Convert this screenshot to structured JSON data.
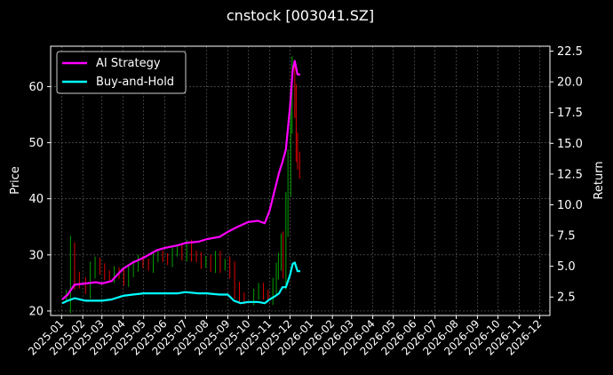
{
  "chart_data": {
    "type": "line",
    "title": "cnstock [003041.SZ]",
    "ylabel": "Price",
    "ylabel_right": "Return",
    "x_ticks": [
      "2025-01",
      "2025-02",
      "2025-03",
      "2025-04",
      "2025-05",
      "2025-06",
      "2025-07",
      "2025-08",
      "2025-09",
      "2025-10",
      "2025-11",
      "2025-12",
      "2026-01",
      "2026-02",
      "2026-03",
      "2026-04",
      "2026-05",
      "2026-06",
      "2026-07",
      "2026-08",
      "2026-09",
      "2026-10",
      "2026-11",
      "2026-12"
    ],
    "y_ticks": [
      20,
      30,
      40,
      50,
      60
    ],
    "y_ticks_right": [
      2.5,
      5.0,
      7.5,
      10.0,
      12.5,
      15.0,
      17.5,
      20.0,
      22.5
    ],
    "y_ticks_right_labels": [
      "2.5",
      "5.0",
      "7.5",
      "10.0",
      "12.5",
      "15.0",
      "17.5",
      "20.0",
      "22.5"
    ],
    "xlim": [
      "2024-12-16",
      "2026-12-16"
    ],
    "ylim": [
      19.2,
      67.2
    ],
    "ylim_right": [
      1.0,
      22.9
    ],
    "grid": true,
    "legend_position": "top-left",
    "background": "#000000",
    "colors": {
      "ai": "#ff00ff",
      "bh": "#00ffff",
      "up": "#00a000",
      "down": "#e00000"
    },
    "series": [
      {
        "name": "AI Strategy",
        "axis": "right",
        "x": [
          "2025-01-02",
          "2025-01-10",
          "2025-01-20",
          "2025-02-05",
          "2025-02-20",
          "2025-03-01",
          "2025-03-15",
          "2025-04-01",
          "2025-04-15",
          "2025-05-01",
          "2025-05-20",
          "2025-06-01",
          "2025-06-20",
          "2025-07-01",
          "2025-07-20",
          "2025-08-01",
          "2025-08-20",
          "2025-09-01",
          "2025-09-15",
          "2025-10-01",
          "2025-10-15",
          "2025-10-25",
          "2025-11-01",
          "2025-11-10",
          "2025-11-15",
          "2025-11-20",
          "2025-11-25",
          "2025-12-01",
          "2025-12-05",
          "2025-12-08",
          "2025-12-12",
          "2025-12-16"
        ],
        "values": [
          2.3,
          2.7,
          3.5,
          3.6,
          3.7,
          3.6,
          3.8,
          4.8,
          5.3,
          5.7,
          6.3,
          6.5,
          6.7,
          6.9,
          7.0,
          7.2,
          7.4,
          7.8,
          8.2,
          8.6,
          8.7,
          8.5,
          9.5,
          11.5,
          12.6,
          13.5,
          14.5,
          18.0,
          21.0,
          21.7,
          20.6,
          20.6
        ]
      },
      {
        "name": "Buy-and-Hold",
        "axis": "right",
        "x": [
          "2025-01-02",
          "2025-01-10",
          "2025-01-20",
          "2025-02-05",
          "2025-02-20",
          "2025-03-01",
          "2025-03-15",
          "2025-04-01",
          "2025-04-15",
          "2025-05-01",
          "2025-05-20",
          "2025-06-01",
          "2025-06-20",
          "2025-07-01",
          "2025-07-20",
          "2025-08-01",
          "2025-08-20",
          "2025-09-01",
          "2025-09-10",
          "2025-09-20",
          "2025-10-01",
          "2025-10-15",
          "2025-10-25",
          "2025-11-01",
          "2025-11-10",
          "2025-11-15",
          "2025-11-20",
          "2025-11-25",
          "2025-12-01",
          "2025-12-05",
          "2025-12-08",
          "2025-12-12",
          "2025-12-16"
        ],
        "values": [
          2.0,
          2.2,
          2.4,
          2.2,
          2.2,
          2.2,
          2.3,
          2.6,
          2.7,
          2.8,
          2.8,
          2.8,
          2.8,
          2.9,
          2.8,
          2.8,
          2.7,
          2.7,
          2.2,
          2.0,
          2.1,
          2.1,
          2.0,
          2.3,
          2.6,
          2.8,
          3.3,
          3.3,
          4.3,
          5.2,
          5.3,
          4.6,
          4.6
        ]
      },
      {
        "name": "Price",
        "axis": "left",
        "style": "candle",
        "x": [
          "2025-01-02",
          "2025-01-08",
          "2025-01-14",
          "2025-01-20",
          "2025-01-27",
          "2025-02-05",
          "2025-02-12",
          "2025-02-19",
          "2025-02-26",
          "2025-03-05",
          "2025-03-12",
          "2025-03-19",
          "2025-03-26",
          "2025-04-02",
          "2025-04-09",
          "2025-04-16",
          "2025-04-23",
          "2025-04-30",
          "2025-05-08",
          "2025-05-15",
          "2025-05-22",
          "2025-05-29",
          "2025-06-05",
          "2025-06-12",
          "2025-06-19",
          "2025-06-26",
          "2025-07-03",
          "2025-07-10",
          "2025-07-17",
          "2025-07-24",
          "2025-07-31",
          "2025-08-07",
          "2025-08-14",
          "2025-08-21",
          "2025-08-28",
          "2025-09-04",
          "2025-09-11",
          "2025-09-18",
          "2025-09-25",
          "2025-10-09",
          "2025-10-16",
          "2025-10-23",
          "2025-10-30",
          "2025-11-06",
          "2025-11-11",
          "2025-11-14",
          "2025-11-18",
          "2025-11-21",
          "2025-11-25",
          "2025-11-28",
          "2025-12-02",
          "2025-12-04",
          "2025-12-08",
          "2025-12-10",
          "2025-12-12",
          "2025-12-15"
        ],
        "values": [
          22.5,
          23.0,
          30.0,
          26.0,
          25.0,
          24.0,
          27.0,
          28.5,
          27.5,
          26.5,
          26.0,
          27.0,
          26.5,
          25.5,
          27.0,
          28.0,
          29.0,
          28.5,
          28.0,
          29.5,
          30.0,
          29.5,
          29.0,
          30.5,
          31.0,
          30.0,
          31.5,
          30.0,
          29.5,
          28.5,
          29.0,
          28.0,
          29.5,
          28.0,
          28.5,
          27.0,
          24.0,
          22.5,
          22.0,
          23.0,
          24.0,
          23.0,
          22.5,
          24.5,
          27.0,
          29.0,
          32.0,
          28.0,
          37.0,
          45.0,
          55.0,
          62.0,
          57.0,
          50.0,
          47.0,
          45.0
        ]
      }
    ]
  }
}
